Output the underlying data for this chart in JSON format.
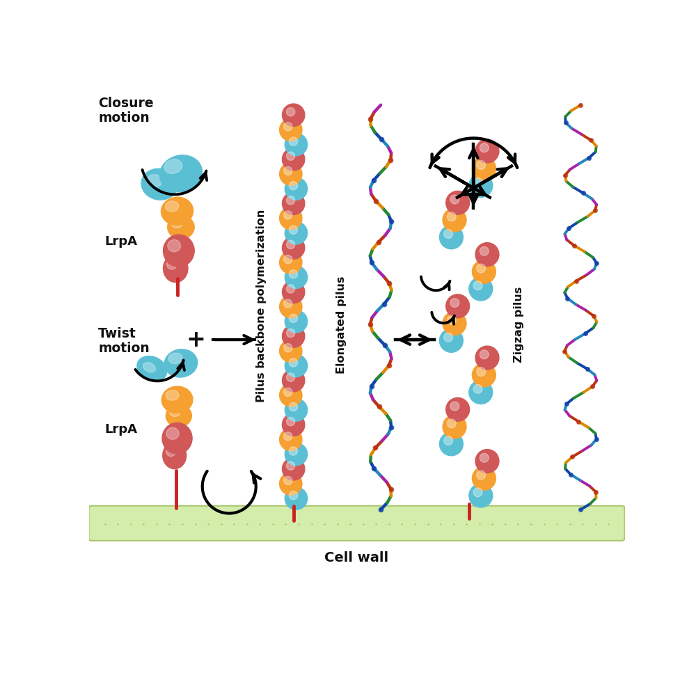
{
  "bg_color": "#ffffff",
  "cell_wall_color": "#d4edaa",
  "cyan_color": "#5bbfd4",
  "orange_color": "#f5a030",
  "red_color": "#d05858",
  "stem_color": "#cc2222",
  "text_color": "#111111",
  "labels": {
    "closure_motion": "Closure\nmotion",
    "twist_motion": "Twist\nmotion",
    "lrpA_top": "LrpA",
    "lrpA_bottom": "LrpA",
    "pilus_backbone": "Pilus backbone polymerization",
    "elongated_pilus": "Elongated pilus",
    "zigzag_pilus": "Zigzag pilus",
    "cell_wall": "Cell wall"
  },
  "crystal_colors": [
    "#1144aa",
    "#228833",
    "#dd8800",
    "#bb3311",
    "#aa22aa",
    "#2288bb"
  ],
  "pilus_sphere_size": 0.42,
  "zigzag_sphere_size": 0.44
}
